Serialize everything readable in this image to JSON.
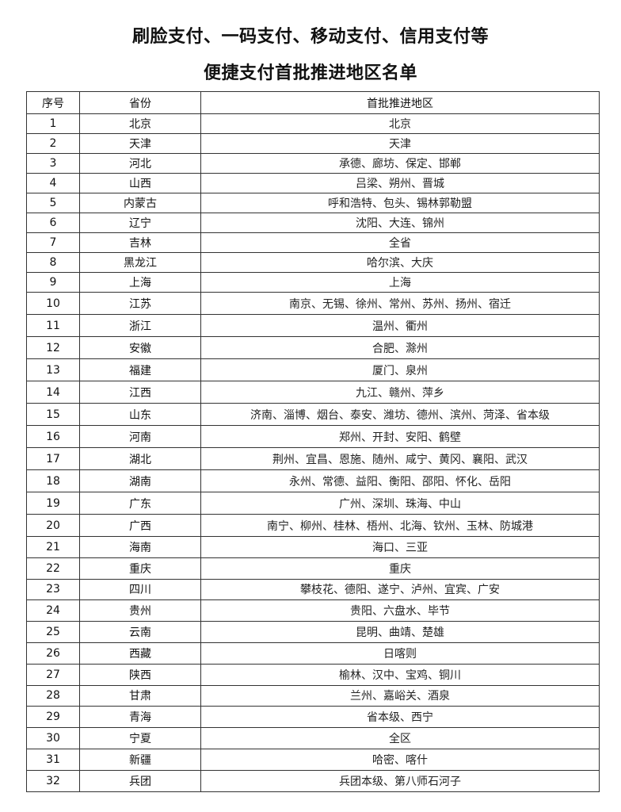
{
  "title_line1": "刷脸支付、一码支付、移动支付、信用支付等",
  "title_line2": "便捷支付首批推进地区名单",
  "table": {
    "headers": [
      "序号",
      "省份",
      "首批推进地区"
    ],
    "rows": [
      [
        "1",
        "北京",
        "北京"
      ],
      [
        "2",
        "天津",
        "天津"
      ],
      [
        "3",
        "河北",
        "承德、廊坊、保定、邯郸"
      ],
      [
        "4",
        "山西",
        "吕梁、朔州、晋城"
      ],
      [
        "5",
        "内蒙古",
        "呼和浩特、包头、锡林郭勒盟"
      ],
      [
        "6",
        "辽宁",
        "沈阳、大连、锦州"
      ],
      [
        "7",
        "吉林",
        "全省"
      ],
      [
        "8",
        "黑龙江",
        "哈尔滨、大庆"
      ],
      [
        "9",
        "上海",
        "上海"
      ],
      [
        "10",
        "江苏",
        "南京、无锡、徐州、常州、苏州、扬州、宿迁"
      ],
      [
        "11",
        "浙江",
        "温州、衢州"
      ],
      [
        "12",
        "安徽",
        "合肥、滁州"
      ],
      [
        "13",
        "福建",
        "厦门、泉州"
      ],
      [
        "14",
        "江西",
        "九江、赣州、萍乡"
      ],
      [
        "15",
        "山东",
        "济南、淄博、烟台、泰安、潍坊、德州、滨州、菏泽、省本级"
      ],
      [
        "16",
        "河南",
        "郑州、开封、安阳、鹤壁"
      ],
      [
        "17",
        "湖北",
        "荆州、宜昌、恩施、随州、咸宁、黄冈、襄阳、武汉"
      ],
      [
        "18",
        "湖南",
        "永州、常德、益阳、衡阳、邵阳、怀化、岳阳"
      ],
      [
        "19",
        "广东",
        "广州、深圳、珠海、中山"
      ],
      [
        "20",
        "广西",
        "南宁、柳州、桂林、梧州、北海、钦州、玉林、防城港"
      ],
      [
        "21",
        "海南",
        "海口、三亚"
      ],
      [
        "22",
        "重庆",
        "重庆"
      ],
      [
        "23",
        "四川",
        "攀枝花、德阳、遂宁、泸州、宜宾、广安"
      ],
      [
        "24",
        "贵州",
        "贵阳、六盘水、毕节"
      ],
      [
        "25",
        "云南",
        "昆明、曲靖、楚雄"
      ],
      [
        "26",
        "西藏",
        "日喀则"
      ],
      [
        "27",
        "陕西",
        "榆林、汉中、宝鸡、铜川"
      ],
      [
        "28",
        "甘肃",
        "兰州、嘉峪关、酒泉"
      ],
      [
        "29",
        "青海",
        "省本级、西宁"
      ],
      [
        "30",
        "宁夏",
        "全区"
      ],
      [
        "31",
        "新疆",
        "哈密、喀什"
      ],
      [
        "32",
        "兵团",
        "兵团本级、第八师石河子"
      ]
    ]
  }
}
